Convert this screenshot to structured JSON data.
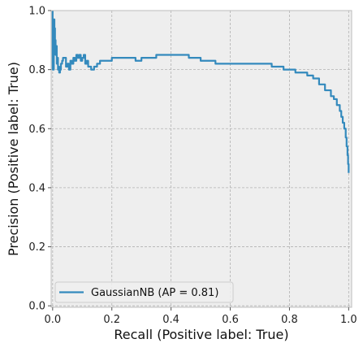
{
  "chart_data": {
    "type": "line",
    "title": "",
    "xlabel": "Recall (Positive label: True)",
    "ylabel": "Precision (Positive label: True)",
    "xlim": [
      -0.005,
      1.01
    ],
    "ylim": [
      -0.005,
      1.0
    ],
    "x_ticks": [
      0.0,
      0.2,
      0.4,
      0.6,
      0.8,
      1.0
    ],
    "x_tick_labels": [
      "0.0",
      "0.2",
      "0.4",
      "0.6",
      "0.8",
      "1.0"
    ],
    "y_ticks": [
      0.0,
      0.2,
      0.4,
      0.6,
      0.8,
      1.0
    ],
    "y_tick_labels": [
      "0.0",
      "0.2",
      "0.4",
      "0.6",
      "0.8",
      "1.0"
    ],
    "grid": true,
    "legend_position": "lower-left",
    "background_color": "#eeeeee",
    "series": [
      {
        "name": "GaussianNB (AP = 0.81)",
        "color": "#348abd",
        "x": [
          0.0,
          0.0,
          0.003,
          0.004,
          0.006,
          0.007,
          0.008,
          0.009,
          0.01,
          0.012,
          0.014,
          0.016,
          0.018,
          0.02,
          0.022,
          0.025,
          0.028,
          0.032,
          0.035,
          0.04,
          0.045,
          0.05,
          0.055,
          0.06,
          0.065,
          0.07,
          0.075,
          0.08,
          0.085,
          0.09,
          0.095,
          0.1,
          0.105,
          0.11,
          0.115,
          0.12,
          0.13,
          0.14,
          0.15,
          0.16,
          0.18,
          0.2,
          0.22,
          0.25,
          0.28,
          0.3,
          0.32,
          0.35,
          0.38,
          0.4,
          0.42,
          0.44,
          0.46,
          0.48,
          0.5,
          0.52,
          0.55,
          0.58,
          0.6,
          0.62,
          0.65,
          0.68,
          0.7,
          0.72,
          0.74,
          0.76,
          0.78,
          0.8,
          0.82,
          0.84,
          0.86,
          0.88,
          0.9,
          0.92,
          0.94,
          0.95,
          0.96,
          0.97,
          0.975,
          0.98,
          0.985,
          0.99,
          0.993,
          0.996,
          0.998,
          1.0,
          1.0
        ],
        "y": [
          1.0,
          0.8,
          0.8,
          0.97,
          0.86,
          0.94,
          0.87,
          0.9,
          0.85,
          0.88,
          0.82,
          0.84,
          0.8,
          0.81,
          0.79,
          0.8,
          0.82,
          0.83,
          0.84,
          0.84,
          0.81,
          0.82,
          0.8,
          0.83,
          0.82,
          0.84,
          0.83,
          0.85,
          0.84,
          0.85,
          0.83,
          0.84,
          0.85,
          0.82,
          0.83,
          0.81,
          0.8,
          0.81,
          0.82,
          0.83,
          0.83,
          0.84,
          0.84,
          0.84,
          0.83,
          0.84,
          0.84,
          0.85,
          0.85,
          0.85,
          0.85,
          0.85,
          0.84,
          0.84,
          0.83,
          0.83,
          0.82,
          0.82,
          0.82,
          0.82,
          0.82,
          0.82,
          0.82,
          0.82,
          0.81,
          0.81,
          0.8,
          0.8,
          0.79,
          0.79,
          0.78,
          0.77,
          0.75,
          0.73,
          0.71,
          0.7,
          0.68,
          0.66,
          0.64,
          0.62,
          0.6,
          0.57,
          0.54,
          0.51,
          0.48,
          0.46,
          0.45
        ]
      }
    ]
  }
}
